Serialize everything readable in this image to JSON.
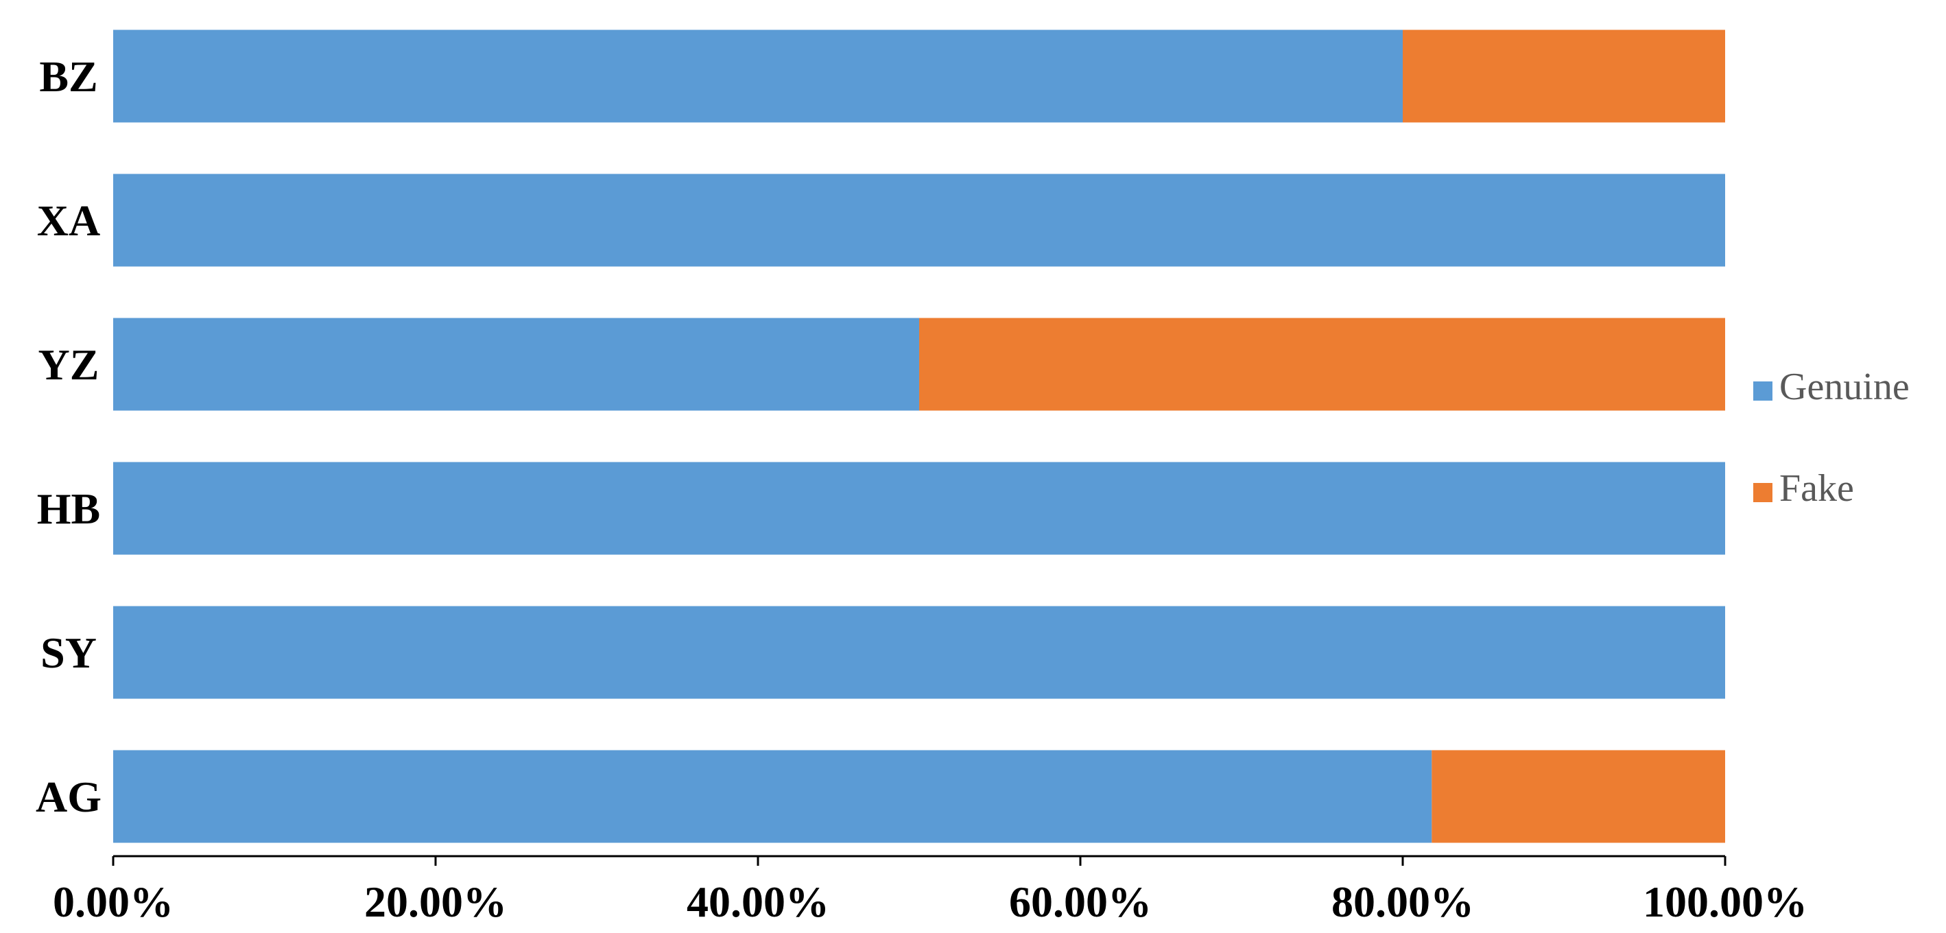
{
  "chart_data": {
    "type": "bar",
    "orientation": "horizontal",
    "stacked": true,
    "percent_stacked": true,
    "categories": [
      "AG",
      "SY",
      "HB",
      "YZ",
      "XA",
      "BZ"
    ],
    "series": [
      {
        "name": "Genuine",
        "color": "#5B9BD5",
        "values": [
          81.8,
          100,
          100,
          50,
          100,
          80
        ]
      },
      {
        "name": "Fake",
        "color": "#ED7D31",
        "values": [
          18.2,
          0,
          0,
          50,
          0,
          20
        ]
      }
    ],
    "xlim": [
      0,
      100
    ],
    "x_ticks": [
      "0.00%",
      "20.00%",
      "40.00%",
      "60.00%",
      "80.00%",
      "100.00%"
    ],
    "xlabel": "",
    "ylabel": "",
    "title": "",
    "grid": false,
    "legend_position": "right"
  }
}
